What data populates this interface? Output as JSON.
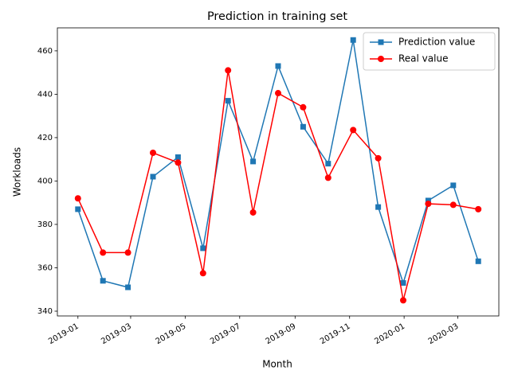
{
  "chart_data": {
    "type": "line",
    "title": "Prediction in training set",
    "x_label": "Month",
    "y_label": "Workloads",
    "x": [
      "2019-01-01",
      "2019-01-29",
      "2019-02-26",
      "2019-03-26",
      "2019-04-23",
      "2019-05-21",
      "2019-06-18",
      "2019-07-16",
      "2019-08-13",
      "2019-09-10",
      "2019-10-08",
      "2019-11-05",
      "2019-12-03",
      "2019-12-31",
      "2020-01-28",
      "2020-02-25",
      "2020-03-24"
    ],
    "series": [
      {
        "name": "Prediction value",
        "color": "#1f77b4",
        "marker": "square",
        "values": [
          387,
          354,
          351,
          402,
          411,
          369,
          437,
          409,
          453,
          425,
          408,
          465,
          388,
          353,
          391,
          398,
          363
        ]
      },
      {
        "name": "Real value",
        "color": "#ff0000",
        "marker": "circle",
        "values": [
          392,
          367,
          367,
          413,
          408.5,
          357.5,
          451,
          385.5,
          440.5,
          434,
          401.5,
          423.5,
          410.5,
          345,
          389.5,
          389,
          387
        ]
      }
    ],
    "xlim": [
      "2018-12-09",
      "2020-04-16"
    ],
    "xticks": [
      "2019-01",
      "2019-03",
      "2019-05",
      "2019-07",
      "2019-09",
      "2019-11",
      "2020-01",
      "2020-03"
    ],
    "ylim": [
      337.8,
      470.6
    ],
    "yticks": [
      340,
      360,
      380,
      400,
      420,
      440,
      460
    ],
    "grid": false,
    "legend": "upper right"
  }
}
